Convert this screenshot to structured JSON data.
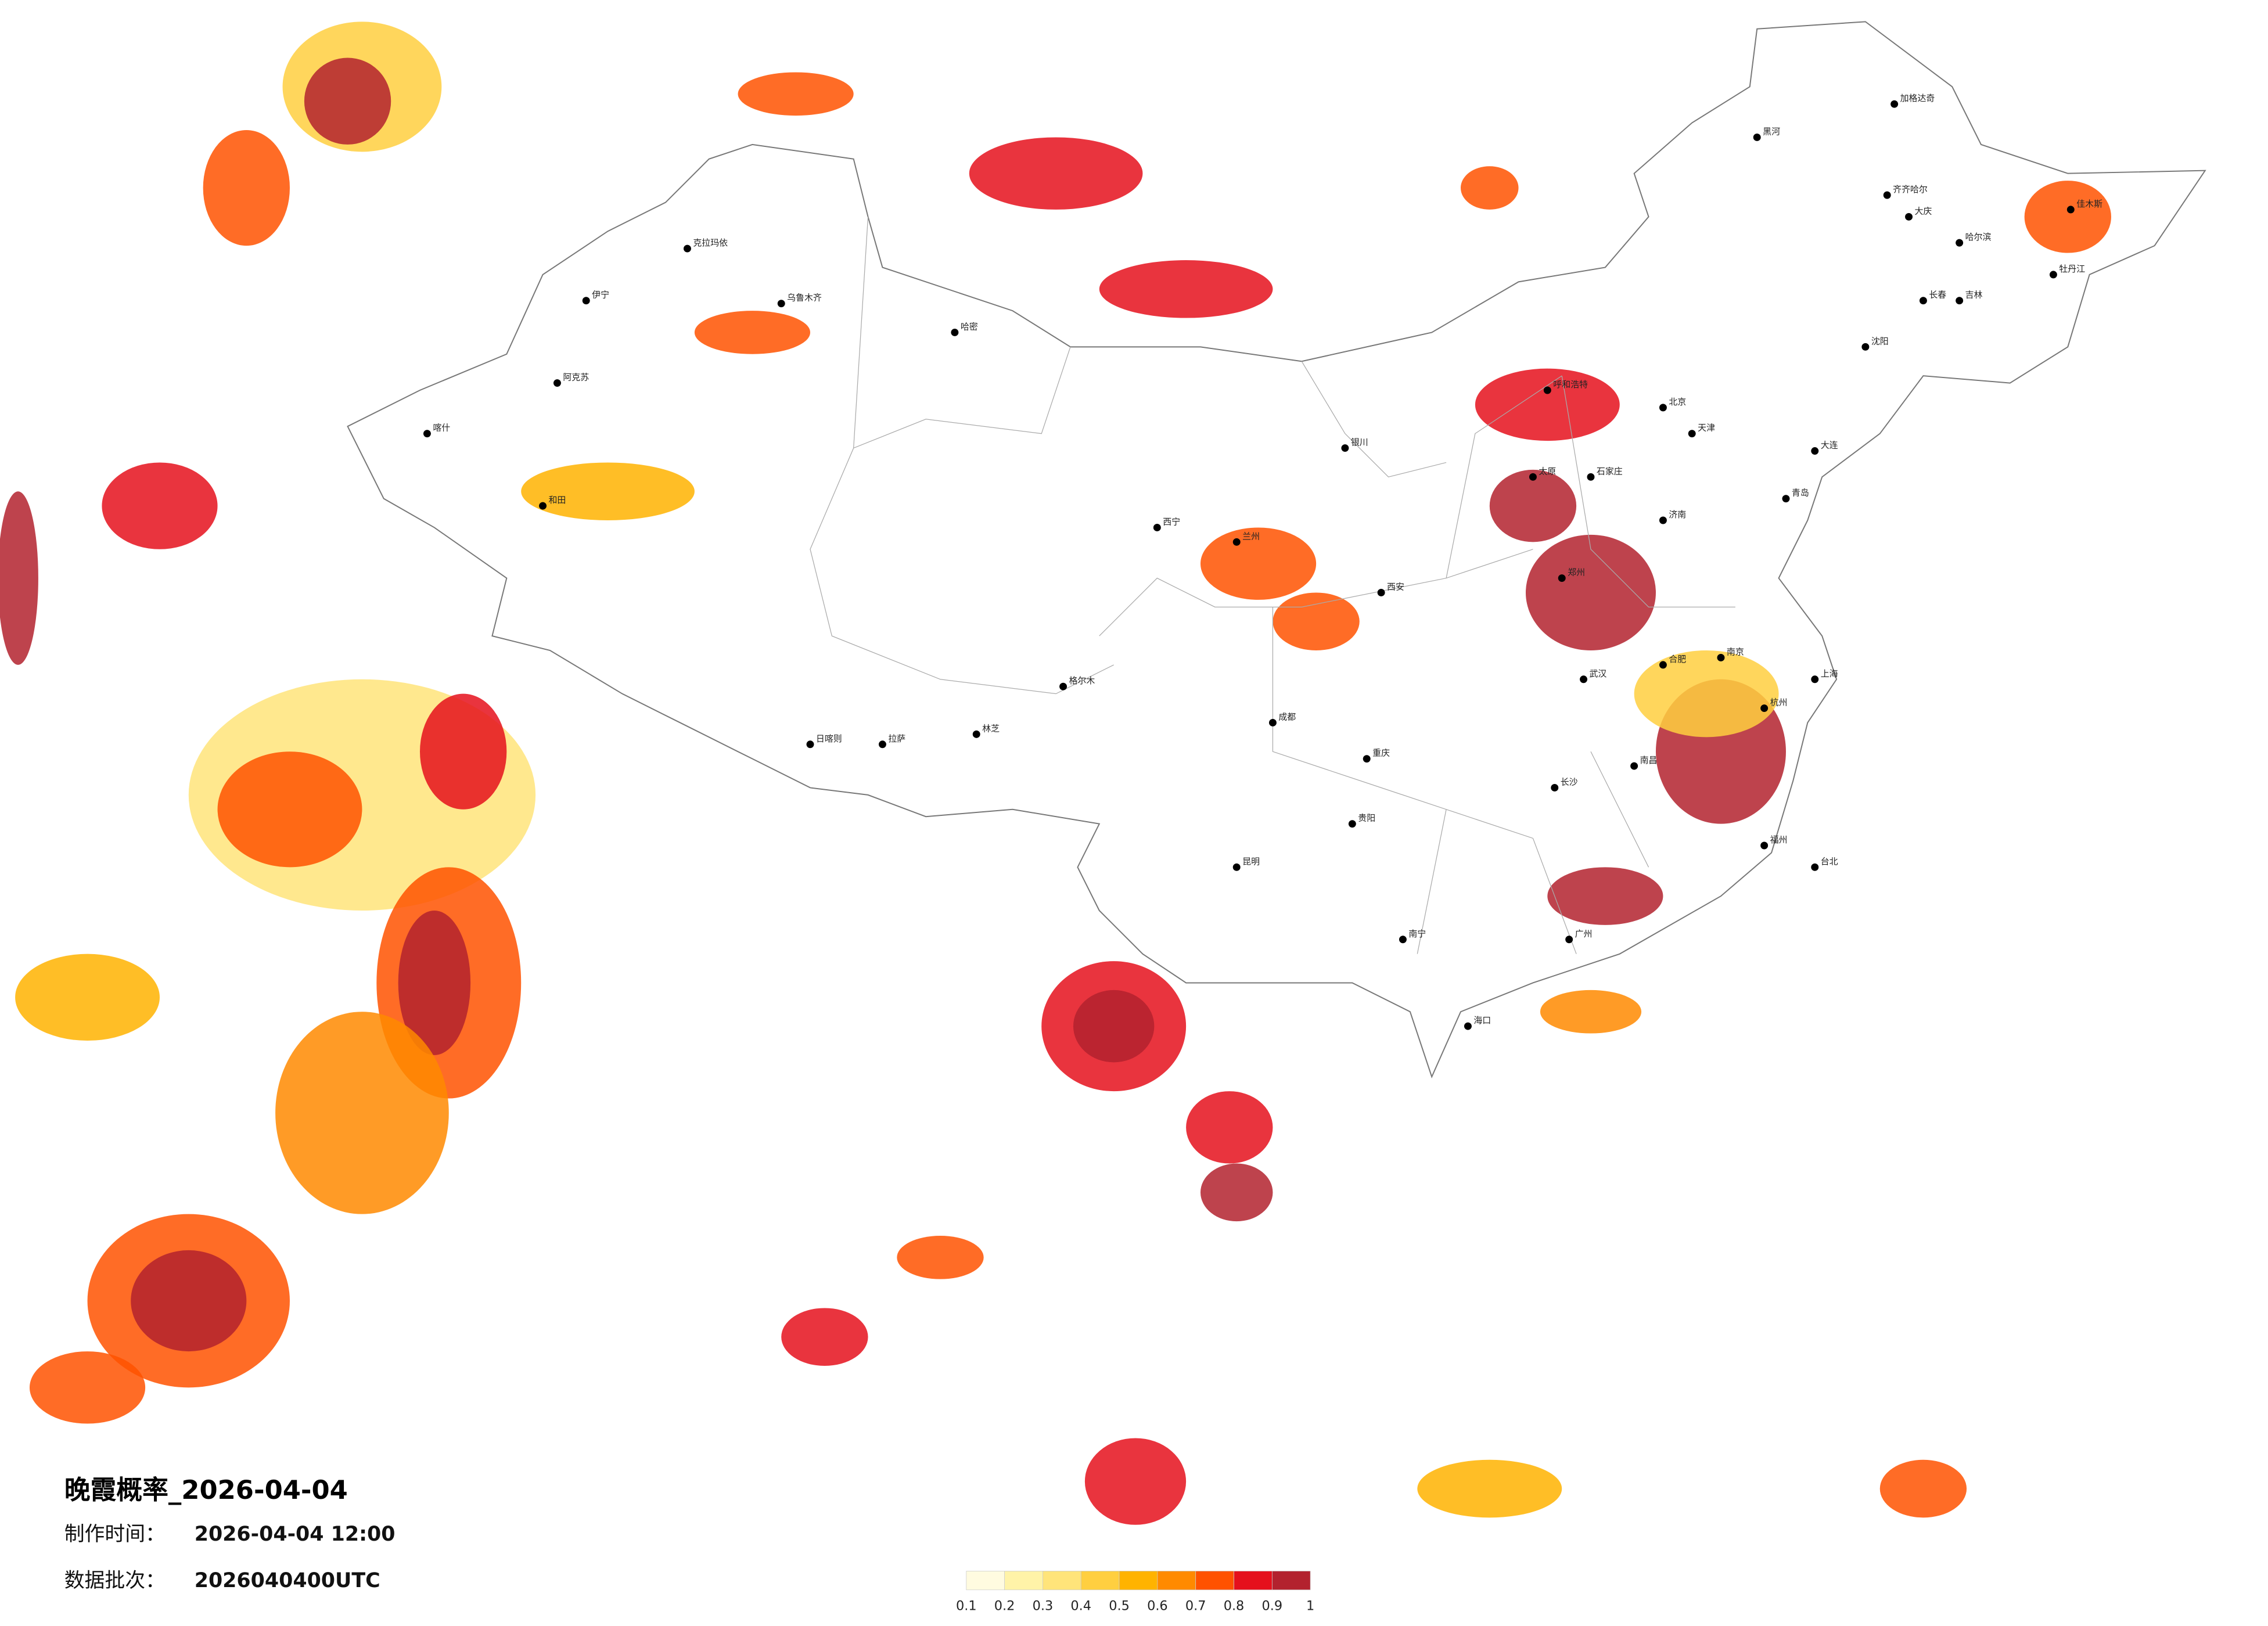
{
  "title": "晚霞概率_2026-04-04",
  "production_time": {
    "label": "制作时间：",
    "value": "2026-04-04 12:00"
  },
  "data_batch": {
    "label": "数据批次：",
    "value": "2026040400UTC"
  },
  "legend": {
    "ticks": [
      0.1,
      0.2,
      0.3,
      0.4,
      0.5,
      0.6,
      0.7,
      0.8,
      0.9,
      1
    ],
    "colors": [
      "#fffbe0",
      "#fff3a8",
      "#ffe47a",
      "#ffcf40",
      "#ffb300",
      "#ff8a00",
      "#ff5200",
      "#e5101c",
      "#b3222e"
    ]
  },
  "cities": [
    "加格达奇",
    "黑河",
    "齐齐哈尔",
    "大庆",
    "哈尔滨",
    "佳木斯",
    "牡丹江",
    "长春",
    "吉林",
    "沈阳",
    "大连",
    "北京",
    "天津",
    "石家庄",
    "济南",
    "青岛",
    "郑州",
    "西安",
    "太原",
    "呼和浩特",
    "银川",
    "兰州",
    "西宁",
    "乌鲁木齐",
    "拉萨",
    "成都",
    "重庆",
    "武汉",
    "南京",
    "上海",
    "杭州",
    "合肥",
    "南昌",
    "长沙",
    "福州",
    "广州",
    "南宁",
    "昆明",
    "贵阳",
    "海口",
    "台北",
    "喀什",
    "和田",
    "格尔木",
    "哈密",
    "阿克苏",
    "伊宁",
    "克拉玛依",
    "日喀则",
    "林芝"
  ]
}
